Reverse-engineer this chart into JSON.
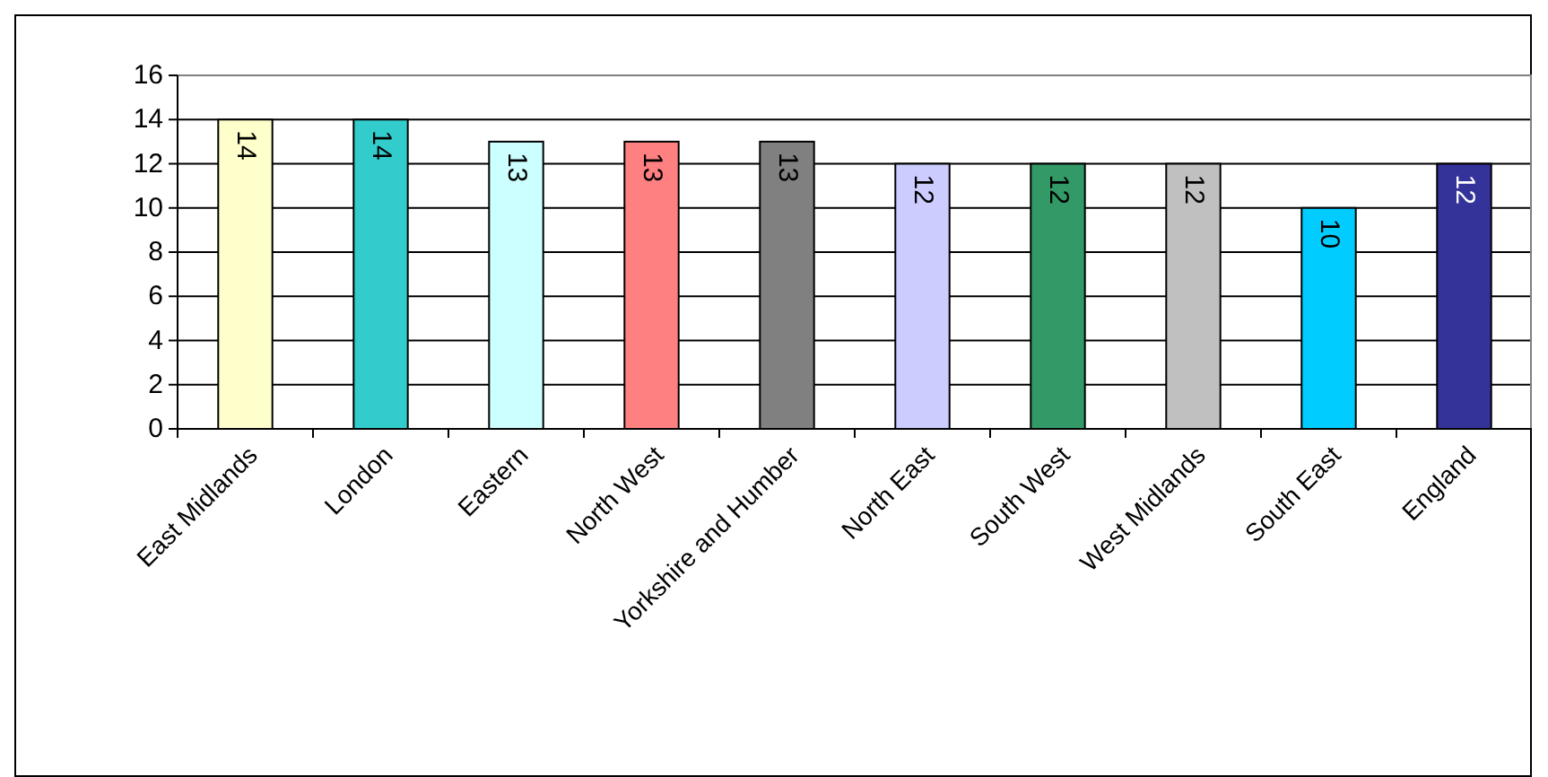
{
  "chart_data": {
    "type": "bar",
    "categories": [
      "East Midlands",
      "London",
      "Eastern",
      "North West",
      "Yorkshire and Humber",
      "North East",
      "South West",
      "West Midlands",
      "South East",
      "England"
    ],
    "values": [
      14,
      14,
      13,
      13,
      13,
      12,
      12,
      12,
      10,
      12
    ],
    "colors": [
      "#ffffcc",
      "#33cccc",
      "#ccffff",
      "#ff8080",
      "#808080",
      "#ccccff",
      "#339966",
      "#c0c0c0",
      "#00ccff",
      "#333399"
    ],
    "ylim": [
      0,
      16
    ],
    "yticks": [
      0,
      2,
      4,
      6,
      8,
      10,
      12,
      14,
      16
    ],
    "grid": "y",
    "data_labels": true
  }
}
